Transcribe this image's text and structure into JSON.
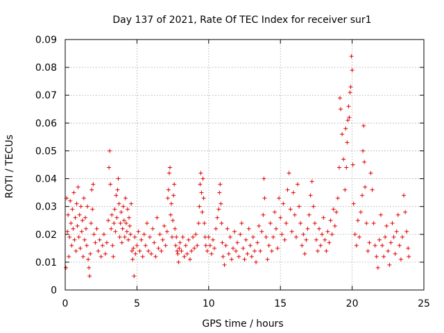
{
  "chart_data": {
    "type": "scatter",
    "title": "Day 137 of 2021, Rate Of TEC Index for receiver sur1",
    "xlabel": "GPS time / hours",
    "ylabel": "ROTI / TECUs",
    "xlim": [
      0,
      25
    ],
    "ylim": [
      0,
      0.09
    ],
    "xticks": [
      "0",
      "5",
      "10",
      "15",
      "20",
      "25"
    ],
    "yticks": [
      "0",
      "0.01",
      "0.02",
      "0.03",
      "0.04",
      "0.05",
      "0.06",
      "0.07",
      "0.08",
      "0.09"
    ],
    "grid": true,
    "marker": "+",
    "color": "#e00000",
    "series": [
      {
        "name": "ROTI",
        "points": [
          [
            0.05,
            0.008
          ],
          [
            0.1,
            0.033
          ],
          [
            0.15,
            0.021
          ],
          [
            0.2,
            0.027
          ],
          [
            0.25,
            0.012
          ],
          [
            0.3,
            0.019
          ],
          [
            0.35,
            0.032
          ],
          [
            0.4,
            0.024
          ],
          [
            0.45,
            0.016
          ],
          [
            0.5,
            0.029
          ],
          [
            0.55,
            0.022
          ],
          [
            0.6,
            0.035
          ],
          [
            0.65,
            0.018
          ],
          [
            0.7,
            0.026
          ],
          [
            0.75,
            0.014
          ],
          [
            0.8,
            0.031
          ],
          [
            0.85,
            0.023
          ],
          [
            0.9,
            0.037
          ],
          [
            0.95,
            0.019
          ],
          [
            1.0,
            0.027
          ],
          [
            1.05,
            0.015
          ],
          [
            1.1,
            0.03
          ],
          [
            1.15,
            0.021
          ],
          [
            1.2,
            0.025
          ],
          [
            1.25,
            0.012
          ],
          [
            1.3,
            0.033
          ],
          [
            1.35,
            0.018
          ],
          [
            1.4,
            0.026
          ],
          [
            1.45,
            0.022
          ],
          [
            1.5,
            0.016
          ],
          [
            1.55,
            0.03
          ],
          [
            1.6,
            0.011
          ],
          [
            1.65,
            0.008
          ],
          [
            1.7,
            0.005
          ],
          [
            1.75,
            0.013
          ],
          [
            1.8,
            0.024
          ],
          [
            1.85,
            0.036
          ],
          [
            1.9,
            0.029
          ],
          [
            1.95,
            0.038
          ],
          [
            2.0,
            0.02
          ],
          [
            2.1,
            0.017
          ],
          [
            2.2,
            0.022
          ],
          [
            2.3,
            0.014
          ],
          [
            2.4,
            0.018
          ],
          [
            2.5,
            0.012
          ],
          [
            2.6,
            0.016
          ],
          [
            2.7,
            0.02
          ],
          [
            2.8,
            0.013
          ],
          [
            2.9,
            0.017
          ],
          [
            3.0,
            0.025
          ],
          [
            3.05,
            0.044
          ],
          [
            3.1,
            0.05
          ],
          [
            3.15,
            0.038
          ],
          [
            3.2,
            0.022
          ],
          [
            3.25,
            0.027
          ],
          [
            3.3,
            0.016
          ],
          [
            3.35,
            0.012
          ],
          [
            3.4,
            0.024
          ],
          [
            3.45,
            0.029
          ],
          [
            3.5,
            0.021
          ],
          [
            3.55,
            0.034
          ],
          [
            3.6,
            0.026
          ],
          [
            3.65,
            0.036
          ],
          [
            3.7,
            0.04
          ],
          [
            3.75,
            0.031
          ],
          [
            3.8,
            0.019
          ],
          [
            3.85,
            0.024
          ],
          [
            3.9,
            0.028
          ],
          [
            3.95,
            0.017
          ],
          [
            4.0,
            0.022
          ],
          [
            4.05,
            0.03
          ],
          [
            4.1,
            0.025
          ],
          [
            4.15,
            0.019
          ],
          [
            4.2,
            0.033
          ],
          [
            4.25,
            0.024
          ],
          [
            4.3,
            0.021
          ],
          [
            4.35,
            0.029
          ],
          [
            4.4,
            0.018
          ],
          [
            4.45,
            0.026
          ],
          [
            4.5,
            0.023
          ],
          [
            4.55,
            0.02
          ],
          [
            4.6,
            0.031
          ],
          [
            4.65,
            0.014
          ],
          [
            4.7,
            0.011
          ],
          [
            4.75,
            0.015
          ],
          [
            4.8,
            0.005
          ],
          [
            4.85,
            0.019
          ],
          [
            4.9,
            0.013
          ],
          [
            5.0,
            0.016
          ],
          [
            5.1,
            0.021
          ],
          [
            5.2,
            0.014
          ],
          [
            5.3,
            0.018
          ],
          [
            5.4,
            0.012
          ],
          [
            5.5,
            0.02
          ],
          [
            5.6,
            0.016
          ],
          [
            5.7,
            0.024
          ],
          [
            5.8,
            0.014
          ],
          [
            5.9,
            0.019
          ],
          [
            6.0,
            0.013
          ],
          [
            6.1,
            0.022
          ],
          [
            6.2,
            0.017
          ],
          [
            6.3,
            0.012
          ],
          [
            6.4,
            0.026
          ],
          [
            6.5,
            0.015
          ],
          [
            6.6,
            0.02
          ],
          [
            6.7,
            0.014
          ],
          [
            6.8,
            0.018
          ],
          [
            6.9,
            0.023
          ],
          [
            7.0,
            0.016
          ],
          [
            7.1,
            0.021
          ],
          [
            7.15,
            0.033
          ],
          [
            7.2,
            0.036
          ],
          [
            7.25,
            0.042
          ],
          [
            7.3,
            0.044
          ],
          [
            7.35,
            0.027
          ],
          [
            7.4,
            0.031
          ],
          [
            7.45,
            0.019
          ],
          [
            7.5,
            0.025
          ],
          [
            7.55,
            0.034
          ],
          [
            7.6,
            0.038
          ],
          [
            7.65,
            0.022
          ],
          [
            7.7,
            0.016
          ],
          [
            7.75,
            0.019
          ],
          [
            7.8,
            0.014
          ],
          [
            7.85,
            0.013
          ],
          [
            7.9,
            0.01
          ],
          [
            7.95,
            0.015
          ],
          [
            8.0,
            0.017
          ],
          [
            8.1,
            0.014
          ],
          [
            8.2,
            0.019
          ],
          [
            8.3,
            0.012
          ],
          [
            8.4,
            0.016
          ],
          [
            8.5,
            0.013
          ],
          [
            8.6,
            0.018
          ],
          [
            8.7,
            0.011
          ],
          [
            8.8,
            0.014
          ],
          [
            8.9,
            0.019
          ],
          [
            9.0,
            0.015
          ],
          [
            9.1,
            0.02
          ],
          [
            9.2,
            0.016
          ],
          [
            9.3,
            0.024
          ],
          [
            9.35,
            0.03
          ],
          [
            9.4,
            0.038
          ],
          [
            9.45,
            0.042
          ],
          [
            9.5,
            0.035
          ],
          [
            9.55,
            0.028
          ],
          [
            9.6,
            0.04
          ],
          [
            9.65,
            0.033
          ],
          [
            9.7,
            0.024
          ],
          [
            9.75,
            0.019
          ],
          [
            9.8,
            0.016
          ],
          [
            9.9,
            0.014
          ],
          [
            10.0,
            0.019
          ],
          [
            10.1,
            0.016
          ],
          [
            10.2,
            0.013
          ],
          [
            10.3,
            0.018
          ],
          [
            10.4,
            0.015
          ],
          [
            10.5,
            0.022
          ],
          [
            10.6,
            0.026
          ],
          [
            10.7,
            0.029
          ],
          [
            10.75,
            0.035
          ],
          [
            10.8,
            0.038
          ],
          [
            10.85,
            0.031
          ],
          [
            10.9,
            0.024
          ],
          [
            10.95,
            0.017
          ],
          [
            11.0,
            0.012
          ],
          [
            11.1,
            0.009
          ],
          [
            11.2,
            0.016
          ],
          [
            11.3,
            0.022
          ],
          [
            11.4,
            0.013
          ],
          [
            11.5,
            0.019
          ],
          [
            11.6,
            0.011
          ],
          [
            11.7,
            0.015
          ],
          [
            11.8,
            0.021
          ],
          [
            11.9,
            0.014
          ],
          [
            12.0,
            0.017
          ],
          [
            12.1,
            0.012
          ],
          [
            12.2,
            0.02
          ],
          [
            12.3,
            0.024
          ],
          [
            12.4,
            0.015
          ],
          [
            12.5,
            0.011
          ],
          [
            12.6,
            0.018
          ],
          [
            12.7,
            0.013
          ],
          [
            12.8,
            0.022
          ],
          [
            12.9,
            0.016
          ],
          [
            13.0,
            0.012
          ],
          [
            13.1,
            0.019
          ],
          [
            13.2,
            0.014
          ],
          [
            13.3,
            0.01
          ],
          [
            13.4,
            0.017
          ],
          [
            13.5,
            0.023
          ],
          [
            13.6,
            0.014
          ],
          [
            13.7,
            0.021
          ],
          [
            13.8,
            0.027
          ],
          [
            13.85,
            0.04
          ],
          [
            13.9,
            0.033
          ],
          [
            14.0,
            0.019
          ],
          [
            14.1,
            0.011
          ],
          [
            14.2,
            0.016
          ],
          [
            14.3,
            0.024
          ],
          [
            14.4,
            0.014
          ],
          [
            14.5,
            0.019
          ],
          [
            14.6,
            0.028
          ],
          [
            14.7,
            0.022
          ],
          [
            14.8,
            0.015
          ],
          [
            14.9,
            0.033
          ],
          [
            15.0,
            0.026
          ],
          [
            15.1,
            0.02
          ],
          [
            15.2,
            0.031
          ],
          [
            15.3,
            0.018
          ],
          [
            15.4,
            0.024
          ],
          [
            15.5,
            0.036
          ],
          [
            15.6,
            0.042
          ],
          [
            15.7,
            0.029
          ],
          [
            15.8,
            0.021
          ],
          [
            15.9,
            0.035
          ],
          [
            16.0,
            0.027
          ],
          [
            16.1,
            0.019
          ],
          [
            16.2,
            0.038
          ],
          [
            16.3,
            0.03
          ],
          [
            16.4,
            0.024
          ],
          [
            16.5,
            0.016
          ],
          [
            16.6,
            0.02
          ],
          [
            16.7,
            0.013
          ],
          [
            16.8,
            0.018
          ],
          [
            16.9,
            0.022
          ],
          [
            17.0,
            0.027
          ],
          [
            17.1,
            0.034
          ],
          [
            17.2,
            0.039
          ],
          [
            17.3,
            0.03
          ],
          [
            17.4,
            0.024
          ],
          [
            17.5,
            0.018
          ],
          [
            17.6,
            0.014
          ],
          [
            17.7,
            0.022
          ],
          [
            17.8,
            0.016
          ],
          [
            17.9,
            0.02
          ],
          [
            18.0,
            0.026
          ],
          [
            18.1,
            0.018
          ],
          [
            18.2,
            0.014
          ],
          [
            18.3,
            0.021
          ],
          [
            18.4,
            0.017
          ],
          [
            18.5,
            0.025
          ],
          [
            18.6,
            0.02
          ],
          [
            18.7,
            0.029
          ],
          [
            18.8,
            0.023
          ],
          [
            18.9,
            0.028
          ],
          [
            19.0,
            0.033
          ],
          [
            19.1,
            0.044
          ],
          [
            19.15,
            0.069
          ],
          [
            19.2,
            0.065
          ],
          [
            19.3,
            0.056
          ],
          [
            19.4,
            0.047
          ],
          [
            19.5,
            0.036
          ],
          [
            19.55,
            0.058
          ],
          [
            19.6,
            0.044
          ],
          [
            19.65,
            0.053
          ],
          [
            19.7,
            0.061
          ],
          [
            19.75,
            0.066
          ],
          [
            19.8,
            0.062
          ],
          [
            19.85,
            0.071
          ],
          [
            19.9,
            0.073
          ],
          [
            19.95,
            0.084
          ],
          [
            20.0,
            0.079
          ],
          [
            20.05,
            0.045
          ],
          [
            20.1,
            0.031
          ],
          [
            20.2,
            0.02
          ],
          [
            20.3,
            0.016
          ],
          [
            20.4,
            0.025
          ],
          [
            20.5,
            0.019
          ],
          [
            20.6,
            0.028
          ],
          [
            20.7,
            0.034
          ],
          [
            20.75,
            0.05
          ],
          [
            20.8,
            0.059
          ],
          [
            20.85,
            0.046
          ],
          [
            20.9,
            0.037
          ],
          [
            21.0,
            0.024
          ],
          [
            21.1,
            0.014
          ],
          [
            21.2,
            0.017
          ],
          [
            21.3,
            0.042
          ],
          [
            21.4,
            0.036
          ],
          [
            21.5,
            0.024
          ],
          [
            21.6,
            0.016
          ],
          [
            21.7,
            0.012
          ],
          [
            21.8,
            0.008
          ],
          [
            21.9,
            0.018
          ],
          [
            22.0,
            0.027
          ],
          [
            22.1,
            0.016
          ],
          [
            22.2,
            0.012
          ],
          [
            22.3,
            0.019
          ],
          [
            22.4,
            0.023
          ],
          [
            22.5,
            0.014
          ],
          [
            22.6,
            0.009
          ],
          [
            22.7,
            0.017
          ],
          [
            22.8,
            0.024
          ],
          [
            22.9,
            0.019
          ],
          [
            23.0,
            0.013
          ],
          [
            23.1,
            0.021
          ],
          [
            23.2,
            0.027
          ],
          [
            23.3,
            0.016
          ],
          [
            23.4,
            0.011
          ],
          [
            23.5,
            0.019
          ],
          [
            23.6,
            0.034
          ],
          [
            23.7,
            0.028
          ],
          [
            23.8,
            0.021
          ],
          [
            23.9,
            0.015
          ],
          [
            23.95,
            0.012
          ]
        ]
      }
    ]
  }
}
